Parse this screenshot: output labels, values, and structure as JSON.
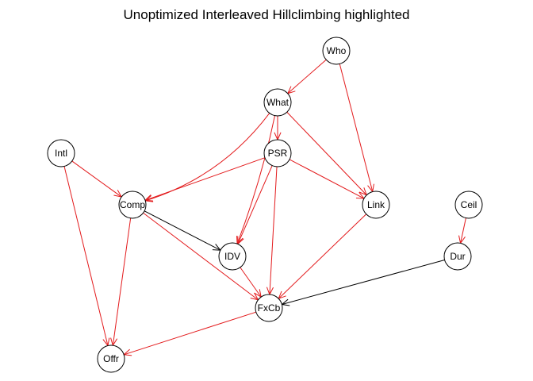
{
  "title": "Unoptimized Interleaved Hillclimbing highlighted",
  "colors": {
    "highlight": "#e31a1c",
    "normal": "#000000"
  },
  "nodes": [
    {
      "id": "Who",
      "label": "Who"
    },
    {
      "id": "What",
      "label": "What"
    },
    {
      "id": "PSR",
      "label": "PSR"
    },
    {
      "id": "Intl",
      "label": "Intl"
    },
    {
      "id": "Comp",
      "label": "Comp"
    },
    {
      "id": "Link",
      "label": "Link"
    },
    {
      "id": "Ceil",
      "label": "Ceil"
    },
    {
      "id": "IDV",
      "label": "IDV"
    },
    {
      "id": "Dur",
      "label": "Dur"
    },
    {
      "id": "FxCb",
      "label": "FxCb"
    },
    {
      "id": "Offr",
      "label": "Offr"
    }
  ],
  "edges": [
    {
      "from": "Who",
      "to": "What",
      "highlighted": true
    },
    {
      "from": "Who",
      "to": "Link",
      "highlighted": true
    },
    {
      "from": "What",
      "to": "PSR",
      "highlighted": true
    },
    {
      "from": "What",
      "to": "Comp",
      "highlighted": true
    },
    {
      "from": "What",
      "to": "IDV",
      "highlighted": true
    },
    {
      "from": "What",
      "to": "Link",
      "highlighted": true
    },
    {
      "from": "PSR",
      "to": "Comp",
      "highlighted": true
    },
    {
      "from": "PSR",
      "to": "IDV",
      "highlighted": true
    },
    {
      "from": "PSR",
      "to": "Link",
      "highlighted": true
    },
    {
      "from": "PSR",
      "to": "FxCb",
      "highlighted": true
    },
    {
      "from": "Intl",
      "to": "Comp",
      "highlighted": true
    },
    {
      "from": "Intl",
      "to": "Offr",
      "highlighted": true
    },
    {
      "from": "Comp",
      "to": "IDV",
      "highlighted": false
    },
    {
      "from": "Comp",
      "to": "FxCb",
      "highlighted": true
    },
    {
      "from": "Comp",
      "to": "Offr",
      "highlighted": true
    },
    {
      "from": "Link",
      "to": "FxCb",
      "highlighted": true
    },
    {
      "from": "IDV",
      "to": "FxCb",
      "highlighted": true
    },
    {
      "from": "Ceil",
      "to": "Dur",
      "highlighted": true
    },
    {
      "from": "Dur",
      "to": "FxCb",
      "highlighted": false
    },
    {
      "from": "FxCb",
      "to": "Offr",
      "highlighted": true
    }
  ]
}
